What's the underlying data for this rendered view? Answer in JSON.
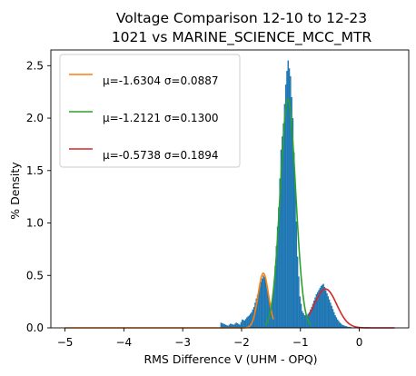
{
  "chart_data": {
    "type": "histogram",
    "title": [
      "Voltage Comparison 12-10 to 12-23",
      "1021 vs MARINE_SCIENCE_MCC_MTR"
    ],
    "xlabel": "RMS Difference V (UHM - OPQ)",
    "ylabel": "% Density",
    "xlim": [
      -5.24,
      0.84
    ],
    "ylim": [
      0,
      2.65
    ],
    "x_ticks": [
      -5,
      -4,
      -3,
      -2,
      -1,
      0
    ],
    "x_tick_labels": [
      "−5",
      "−4",
      "−3",
      "−2",
      "−1",
      "0"
    ],
    "y_ticks": [
      0.0,
      0.5,
      1.0,
      1.5,
      2.0,
      2.5
    ],
    "y_tick_labels": [
      "0.0",
      "0.5",
      "1.0",
      "1.5",
      "2.0",
      "2.5"
    ],
    "histogram": {
      "color": "#1f77b4",
      "bin_width": 0.02,
      "points": [
        [
          -2.36,
          0.05
        ],
        [
          -2.24,
          0.02
        ],
        [
          -2.2,
          0.04
        ],
        [
          -2.14,
          0.03
        ],
        [
          -2.1,
          0.05
        ],
        [
          -2.04,
          0.03
        ],
        [
          -2.0,
          0.08
        ],
        [
          -1.96,
          0.07
        ],
        [
          -1.92,
          0.1
        ],
        [
          -1.88,
          0.12
        ],
        [
          -1.84,
          0.15
        ],
        [
          -1.8,
          0.2
        ],
        [
          -1.76,
          0.28
        ],
        [
          -1.72,
          0.35
        ],
        [
          -1.68,
          0.44
        ],
        [
          -1.64,
          0.5
        ],
        [
          -1.6,
          0.47
        ],
        [
          -1.56,
          0.33
        ],
        [
          -1.52,
          0.2
        ],
        [
          -1.5,
          0.24
        ],
        [
          -1.46,
          0.4
        ],
        [
          -1.42,
          0.78
        ],
        [
          -1.38,
          1.15
        ],
        [
          -1.34,
          1.7
        ],
        [
          -1.3,
          1.95
        ],
        [
          -1.26,
          2.32
        ],
        [
          -1.24,
          2.45
        ],
        [
          -1.22,
          2.55
        ],
        [
          -1.18,
          2.4
        ],
        [
          -1.14,
          2.0
        ],
        [
          -1.1,
          1.35
        ],
        [
          -1.06,
          0.68
        ],
        [
          -1.02,
          0.3
        ],
        [
          -0.98,
          0.16
        ],
        [
          -0.94,
          0.12
        ],
        [
          -0.9,
          0.12
        ],
        [
          -0.86,
          0.15
        ],
        [
          -0.82,
          0.2
        ],
        [
          -0.78,
          0.26
        ],
        [
          -0.74,
          0.32
        ],
        [
          -0.7,
          0.36
        ],
        [
          -0.66,
          0.4
        ],
        [
          -0.62,
          0.42
        ],
        [
          -0.58,
          0.36
        ],
        [
          -0.54,
          0.3
        ],
        [
          -0.5,
          0.24
        ],
        [
          -0.46,
          0.18
        ],
        [
          -0.42,
          0.12
        ],
        [
          -0.38,
          0.08
        ],
        [
          -0.34,
          0.05
        ],
        [
          -0.3,
          0.03
        ],
        [
          -0.26,
          0.02
        ],
        [
          -0.2,
          0.01
        ],
        [
          -0.14,
          0.01
        ]
      ]
    },
    "series": [
      {
        "label": "μ=-1.6304 σ=0.0887",
        "mu": -1.6304,
        "sigma": 0.0887,
        "weight": 0.116,
        "color": "#ff7f0e",
        "x_range": [
          -5.0,
          -1.46
        ]
      },
      {
        "label": "μ=-1.2121 σ=0.1300",
        "mu": -1.2121,
        "sigma": 0.13,
        "weight": 0.71,
        "color": "#2ca02c",
        "x_range": [
          -1.6,
          -0.82
        ]
      },
      {
        "label": "μ=-0.5738 σ=0.1894",
        "mu": -0.5738,
        "sigma": 0.1894,
        "weight": 0.176,
        "color": "#d62728",
        "x_range": [
          -0.86,
          0.6
        ]
      }
    ],
    "legend_position": "upper left",
    "grid": false
  }
}
